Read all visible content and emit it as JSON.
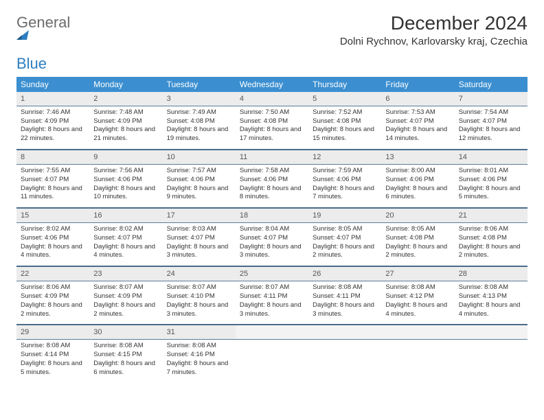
{
  "logo": {
    "word1": "General",
    "word2": "Blue"
  },
  "title": "December 2024",
  "location": "Dolni Rychnov, Karlovarsky kraj, Czechia",
  "colors": {
    "header_bg": "#3b8fd0",
    "rule": "#4a6b8a"
  },
  "weekdays": [
    "Sunday",
    "Monday",
    "Tuesday",
    "Wednesday",
    "Thursday",
    "Friday",
    "Saturday"
  ],
  "weeks": [
    [
      {
        "n": "1",
        "sr": "7:46 AM",
        "ss": "4:09 PM",
        "dl": "8 hours and 22 minutes."
      },
      {
        "n": "2",
        "sr": "7:48 AM",
        "ss": "4:09 PM",
        "dl": "8 hours and 21 minutes."
      },
      {
        "n": "3",
        "sr": "7:49 AM",
        "ss": "4:08 PM",
        "dl": "8 hours and 19 minutes."
      },
      {
        "n": "4",
        "sr": "7:50 AM",
        "ss": "4:08 PM",
        "dl": "8 hours and 17 minutes."
      },
      {
        "n": "5",
        "sr": "7:52 AM",
        "ss": "4:08 PM",
        "dl": "8 hours and 15 minutes."
      },
      {
        "n": "6",
        "sr": "7:53 AM",
        "ss": "4:07 PM",
        "dl": "8 hours and 14 minutes."
      },
      {
        "n": "7",
        "sr": "7:54 AM",
        "ss": "4:07 PM",
        "dl": "8 hours and 12 minutes."
      }
    ],
    [
      {
        "n": "8",
        "sr": "7:55 AM",
        "ss": "4:07 PM",
        "dl": "8 hours and 11 minutes."
      },
      {
        "n": "9",
        "sr": "7:56 AM",
        "ss": "4:06 PM",
        "dl": "8 hours and 10 minutes."
      },
      {
        "n": "10",
        "sr": "7:57 AM",
        "ss": "4:06 PM",
        "dl": "8 hours and 9 minutes."
      },
      {
        "n": "11",
        "sr": "7:58 AM",
        "ss": "4:06 PM",
        "dl": "8 hours and 8 minutes."
      },
      {
        "n": "12",
        "sr": "7:59 AM",
        "ss": "4:06 PM",
        "dl": "8 hours and 7 minutes."
      },
      {
        "n": "13",
        "sr": "8:00 AM",
        "ss": "4:06 PM",
        "dl": "8 hours and 6 minutes."
      },
      {
        "n": "14",
        "sr": "8:01 AM",
        "ss": "4:06 PM",
        "dl": "8 hours and 5 minutes."
      }
    ],
    [
      {
        "n": "15",
        "sr": "8:02 AM",
        "ss": "4:06 PM",
        "dl": "8 hours and 4 minutes."
      },
      {
        "n": "16",
        "sr": "8:02 AM",
        "ss": "4:07 PM",
        "dl": "8 hours and 4 minutes."
      },
      {
        "n": "17",
        "sr": "8:03 AM",
        "ss": "4:07 PM",
        "dl": "8 hours and 3 minutes."
      },
      {
        "n": "18",
        "sr": "8:04 AM",
        "ss": "4:07 PM",
        "dl": "8 hours and 3 minutes."
      },
      {
        "n": "19",
        "sr": "8:05 AM",
        "ss": "4:07 PM",
        "dl": "8 hours and 2 minutes."
      },
      {
        "n": "20",
        "sr": "8:05 AM",
        "ss": "4:08 PM",
        "dl": "8 hours and 2 minutes."
      },
      {
        "n": "21",
        "sr": "8:06 AM",
        "ss": "4:08 PM",
        "dl": "8 hours and 2 minutes."
      }
    ],
    [
      {
        "n": "22",
        "sr": "8:06 AM",
        "ss": "4:09 PM",
        "dl": "8 hours and 2 minutes."
      },
      {
        "n": "23",
        "sr": "8:07 AM",
        "ss": "4:09 PM",
        "dl": "8 hours and 2 minutes."
      },
      {
        "n": "24",
        "sr": "8:07 AM",
        "ss": "4:10 PM",
        "dl": "8 hours and 3 minutes."
      },
      {
        "n": "25",
        "sr": "8:07 AM",
        "ss": "4:11 PM",
        "dl": "8 hours and 3 minutes."
      },
      {
        "n": "26",
        "sr": "8:08 AM",
        "ss": "4:11 PM",
        "dl": "8 hours and 3 minutes."
      },
      {
        "n": "27",
        "sr": "8:08 AM",
        "ss": "4:12 PM",
        "dl": "8 hours and 4 minutes."
      },
      {
        "n": "28",
        "sr": "8:08 AM",
        "ss": "4:13 PM",
        "dl": "8 hours and 4 minutes."
      }
    ],
    [
      {
        "n": "29",
        "sr": "8:08 AM",
        "ss": "4:14 PM",
        "dl": "8 hours and 5 minutes."
      },
      {
        "n": "30",
        "sr": "8:08 AM",
        "ss": "4:15 PM",
        "dl": "8 hours and 6 minutes."
      },
      {
        "n": "31",
        "sr": "8:08 AM",
        "ss": "4:16 PM",
        "dl": "8 hours and 7 minutes."
      },
      null,
      null,
      null,
      null
    ]
  ],
  "labels": {
    "sunrise": "Sunrise:",
    "sunset": "Sunset:",
    "daylight": "Daylight:"
  }
}
